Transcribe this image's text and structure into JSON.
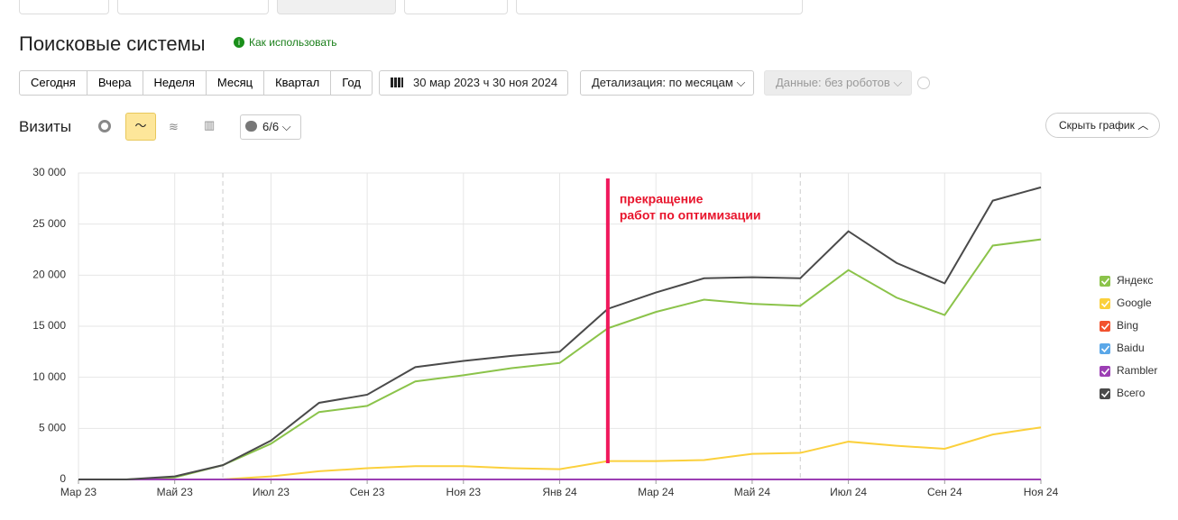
{
  "page": {
    "title": "Поисковые системы",
    "help_link": "Как использовать",
    "periods": [
      "Сегодня",
      "Вчера",
      "Неделя",
      "Месяц",
      "Квартал",
      "Год"
    ],
    "date_range": "30 мар 2023 ч 30 ноя 2024",
    "detail": "Детализация: по месяцам",
    "data_filter": "Данные: без роботов",
    "metric": "Визиты",
    "series_count": "6/6",
    "hide_chart": "Скрыть график"
  },
  "chart_data": {
    "type": "line",
    "categories": [
      "Мар 23",
      null,
      "Май 23",
      null,
      "Июл 23",
      null,
      "Сен 23",
      null,
      "Ноя 23",
      null,
      "Янв 24",
      null,
      "Мар 24",
      null,
      "Май 24",
      null,
      "Июл 24",
      null,
      "Сен 24",
      null,
      "Ноя 24"
    ],
    "series": [
      {
        "name": "Яндекс",
        "color": "#8bc34a",
        "values": [
          0,
          0,
          200,
          1400,
          3500,
          6600,
          7200,
          9600,
          10200,
          10900,
          11400,
          14800,
          16400,
          17600,
          17200,
          17000,
          20500,
          17800,
          16100,
          22900,
          23500
        ]
      },
      {
        "name": "Google",
        "color": "#fbd03c",
        "values": [
          0,
          0,
          0,
          0,
          300,
          800,
          1100,
          1300,
          1300,
          1100,
          1000,
          1800,
          1800,
          1900,
          2500,
          2600,
          3700,
          3300,
          3000,
          4400,
          5100
        ]
      },
      {
        "name": "Bing",
        "color": "#f2522e",
        "values": [
          0,
          0,
          0,
          0,
          0,
          0,
          0,
          0,
          0,
          0,
          0,
          0,
          0,
          0,
          0,
          0,
          0,
          0,
          0,
          0,
          0
        ]
      },
      {
        "name": "Baidu",
        "color": "#5aa7e8",
        "values": [
          0,
          0,
          0,
          0,
          0,
          0,
          0,
          0,
          0,
          0,
          0,
          0,
          0,
          0,
          0,
          0,
          0,
          0,
          0,
          0,
          0
        ]
      },
      {
        "name": "Rambler",
        "color": "#9c3fb4",
        "values": [
          0,
          0,
          0,
          0,
          0,
          0,
          0,
          0,
          0,
          0,
          0,
          0,
          0,
          0,
          0,
          0,
          0,
          0,
          0,
          0,
          0
        ]
      },
      {
        "name": "Всего",
        "color": "#4a4a4a",
        "values": [
          0,
          0,
          300,
          1400,
          3800,
          7500,
          8300,
          11000,
          11600,
          12100,
          12500,
          16700,
          18300,
          19700,
          19800,
          19700,
          24300,
          21200,
          19200,
          27300,
          28600
        ]
      }
    ],
    "ylim": [
      0,
      30000
    ],
    "yticks": [
      0,
      {
        "value": 5000,
        "label": "5 000"
      },
      {
        "value": 10000,
        "label": "10 000"
      },
      {
        "value": 15000,
        "label": "15 000"
      },
      {
        "value": 20000,
        "label": "20 000"
      },
      {
        "value": 25000,
        "label": "25 000"
      },
      {
        "value": 30000,
        "label": "30 000"
      }
    ],
    "grid": true,
    "annotation": [
      "прекращение",
      "работ по оптимизации"
    ]
  }
}
